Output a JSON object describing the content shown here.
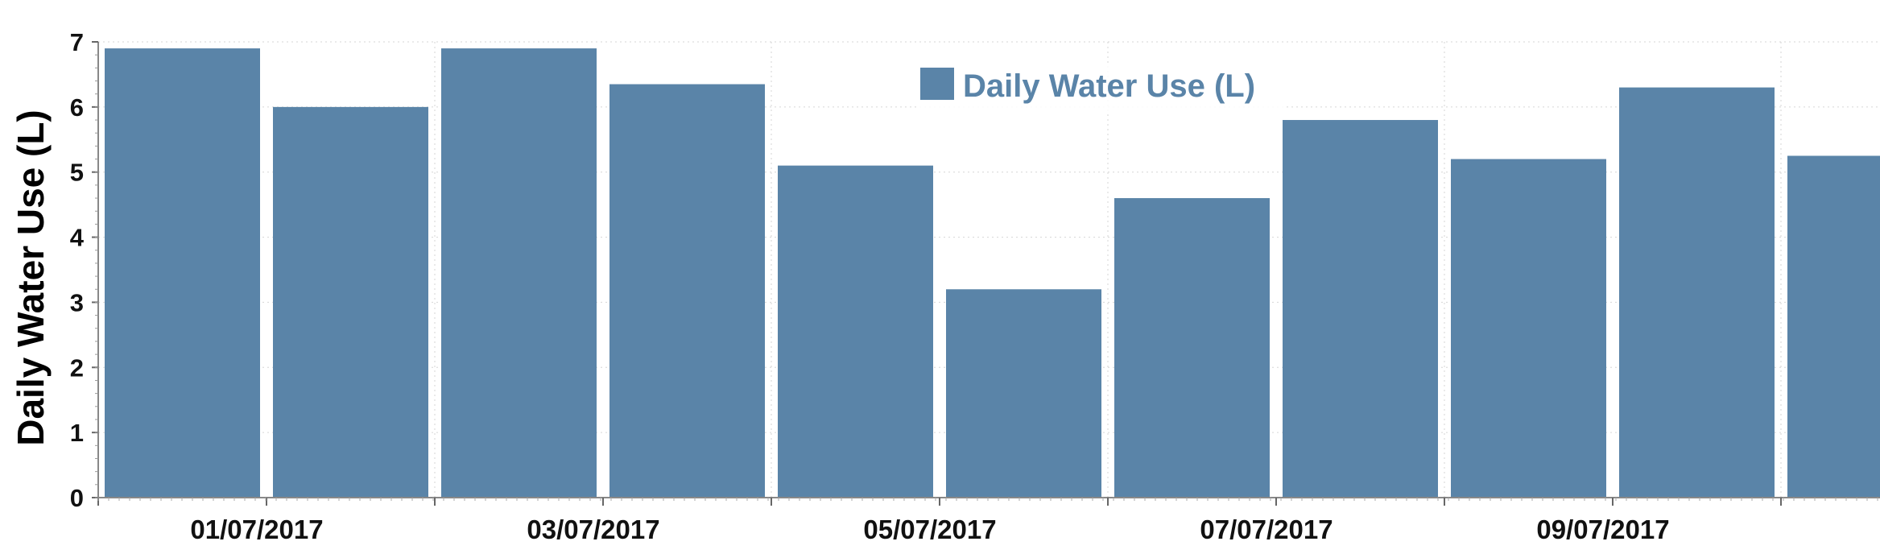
{
  "chart_data": {
    "type": "bar",
    "title": "",
    "xlabel": "",
    "ylabel": "Daily Water Use (L)",
    "ylim": [
      0,
      7
    ],
    "yticks": [
      "0",
      "1",
      "2",
      "3",
      "4",
      "5",
      "6",
      "7"
    ],
    "xtick_labels": [
      "01/07/2017",
      "03/07/2017",
      "05/07/2017",
      "07/07/2017",
      "09/07/2017"
    ],
    "grid": true,
    "legend_position": "top-center",
    "series": [
      {
        "name": "Daily Water Use (L)",
        "color": "#5a84a8",
        "values": [
          6.9,
          6.0,
          6.9,
          6.35,
          5.1,
          3.2,
          4.6,
          5.8,
          5.2,
          6.3,
          5.25
        ]
      }
    ]
  }
}
